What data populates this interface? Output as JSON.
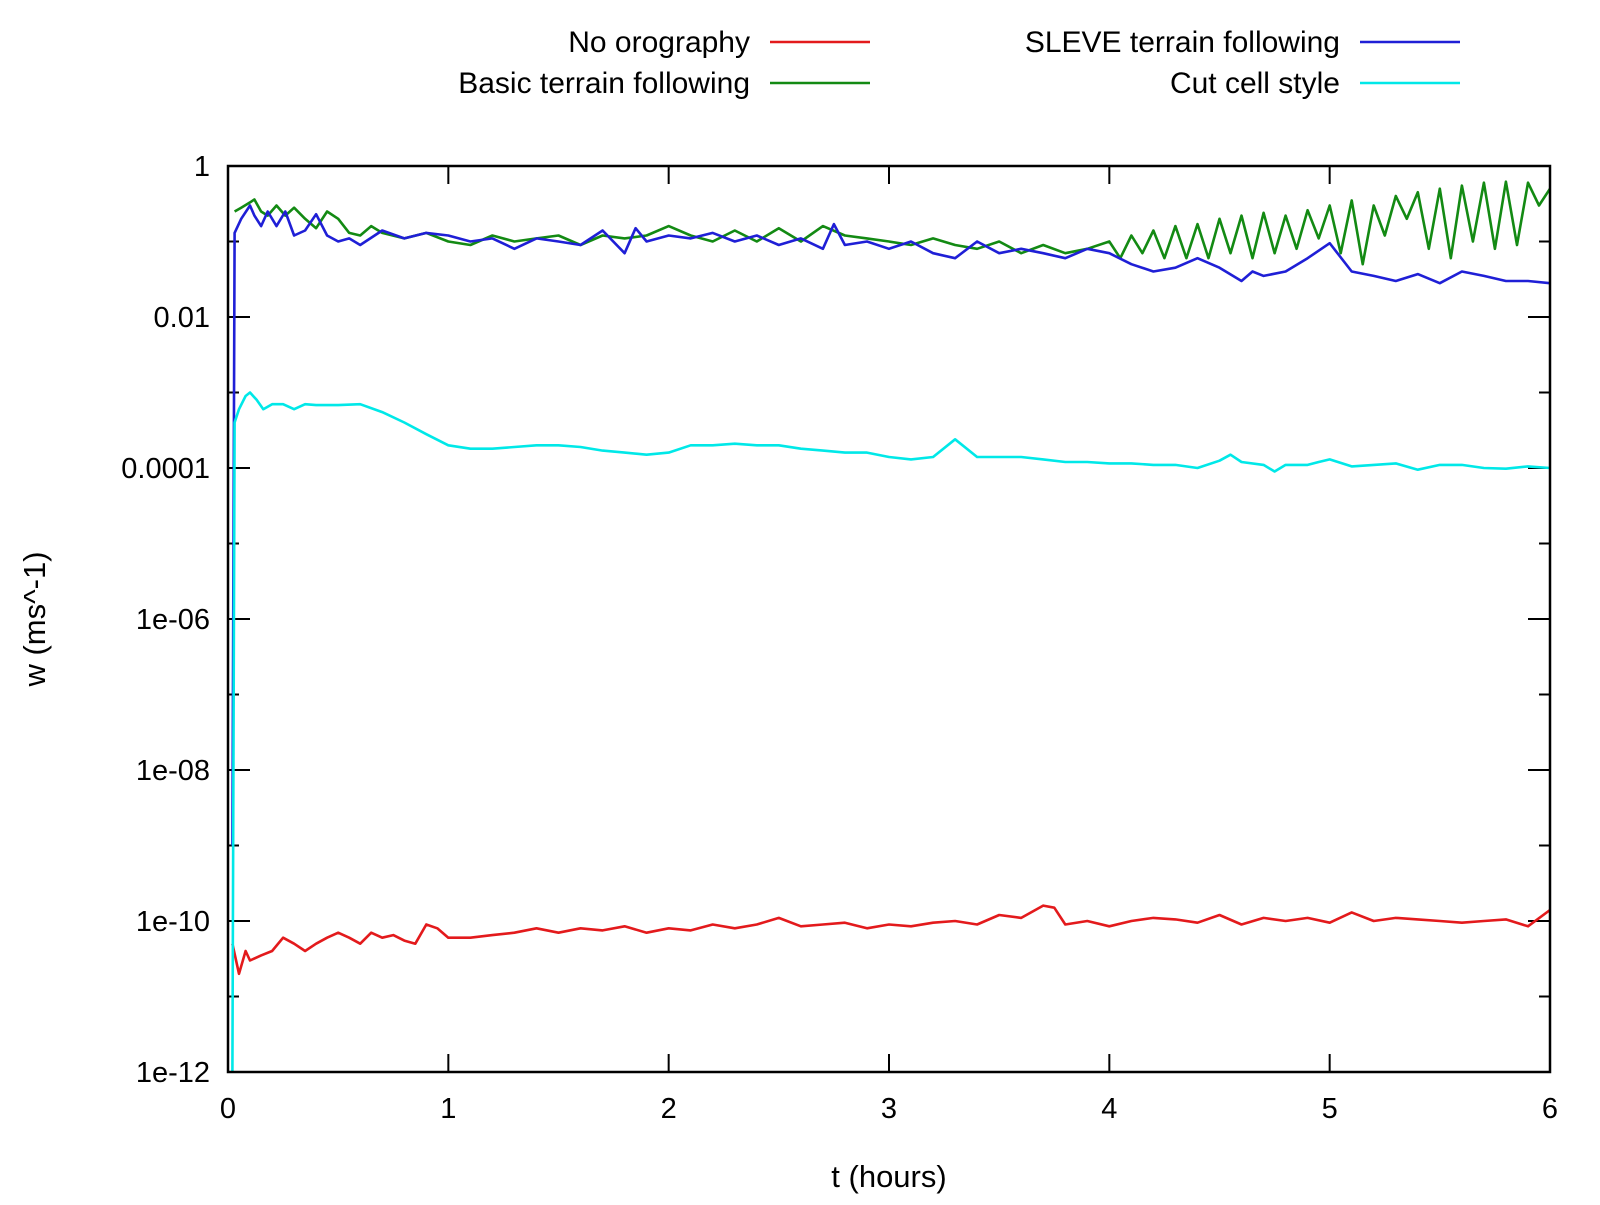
{
  "chart_data": {
    "type": "line",
    "title": "",
    "xlabel": "t (hours)",
    "ylabel": "w (ms^-1)",
    "xlim": [
      0,
      6
    ],
    "ylim": [
      1e-12,
      1
    ],
    "yscale": "log",
    "x_ticks": [
      0,
      1,
      2,
      3,
      4,
      5,
      6
    ],
    "x_tick_labels": [
      "0",
      "1",
      "2",
      "3",
      "4",
      "5",
      "6"
    ],
    "y_ticks": [
      1e-12,
      1e-10,
      1e-08,
      1e-06,
      0.0001,
      0.01,
      1
    ],
    "y_tick_labels": [
      "1e-12",
      "1e-10",
      "1e-08",
      "1e-06",
      "0.0001",
      "0.01",
      "1"
    ],
    "grid": false,
    "legend_position": "top",
    "series": [
      {
        "name": "No orography",
        "color": "#e31a1c",
        "x": [
          0.02,
          0.05,
          0.08,
          0.1,
          0.15,
          0.2,
          0.25,
          0.3,
          0.35,
          0.4,
          0.45,
          0.5,
          0.55,
          0.6,
          0.65,
          0.7,
          0.75,
          0.8,
          0.85,
          0.9,
          0.95,
          1.0,
          1.1,
          1.2,
          1.3,
          1.4,
          1.5,
          1.6,
          1.7,
          1.8,
          1.9,
          2.0,
          2.1,
          2.2,
          2.3,
          2.4,
          2.5,
          2.6,
          2.7,
          2.8,
          2.9,
          3.0,
          3.1,
          3.2,
          3.3,
          3.4,
          3.5,
          3.6,
          3.7,
          3.75,
          3.8,
          3.9,
          4.0,
          4.1,
          4.2,
          4.3,
          4.4,
          4.5,
          4.6,
          4.7,
          4.8,
          4.9,
          5.0,
          5.1,
          5.2,
          5.3,
          5.4,
          5.5,
          5.6,
          5.7,
          5.8,
          5.9,
          6.0
        ],
        "y": [
          5e-11,
          2e-11,
          4e-11,
          3e-11,
          3.5e-11,
          4e-11,
          6e-11,
          5e-11,
          4e-11,
          5e-11,
          6e-11,
          7e-11,
          6e-11,
          5e-11,
          7e-11,
          6e-11,
          6.5e-11,
          5.5e-11,
          5e-11,
          9e-11,
          8e-11,
          6e-11,
          6e-11,
          6.5e-11,
          7e-11,
          8e-11,
          7e-11,
          8e-11,
          7.5e-11,
          8.5e-11,
          7e-11,
          8e-11,
          7.5e-11,
          9e-11,
          8e-11,
          9e-11,
          1.1e-10,
          8.5e-11,
          9e-11,
          9.5e-11,
          8e-11,
          9e-11,
          8.5e-11,
          9.5e-11,
          1e-10,
          9e-11,
          1.2e-10,
          1.1e-10,
          1.6e-10,
          1.5e-10,
          9e-11,
          1e-10,
          8.5e-11,
          1e-10,
          1.1e-10,
          1.05e-10,
          9.5e-11,
          1.2e-10,
          9e-11,
          1.1e-10,
          1e-10,
          1.1e-10,
          9.5e-11,
          1.3e-10,
          1e-10,
          1.1e-10,
          1.05e-10,
          1e-10,
          9.5e-11,
          1e-10,
          1.05e-10,
          8.5e-11,
          1.4e-10
        ]
      },
      {
        "name": "Basic terrain following",
        "color": "#138a13",
        "x": [
          0.03,
          0.06,
          0.1,
          0.12,
          0.15,
          0.18,
          0.22,
          0.26,
          0.3,
          0.35,
          0.4,
          0.45,
          0.5,
          0.55,
          0.6,
          0.65,
          0.7,
          0.8,
          0.9,
          1.0,
          1.1,
          1.2,
          1.3,
          1.4,
          1.5,
          1.6,
          1.7,
          1.8,
          1.9,
          2.0,
          2.1,
          2.2,
          2.3,
          2.4,
          2.5,
          2.6,
          2.7,
          2.8,
          2.9,
          3.0,
          3.1,
          3.2,
          3.3,
          3.4,
          3.5,
          3.6,
          3.7,
          3.8,
          3.9,
          4.0,
          4.05,
          4.1,
          4.15,
          4.2,
          4.25,
          4.3,
          4.35,
          4.4,
          4.45,
          4.5,
          4.55,
          4.6,
          4.65,
          4.7,
          4.75,
          4.8,
          4.85,
          4.9,
          4.95,
          5.0,
          5.05,
          5.1,
          5.15,
          5.2,
          5.25,
          5.3,
          5.35,
          5.4,
          5.45,
          5.5,
          5.55,
          5.6,
          5.65,
          5.7,
          5.75,
          5.8,
          5.85,
          5.9,
          5.95,
          6.0
        ],
        "y": [
          0.25,
          0.28,
          0.33,
          0.36,
          0.25,
          0.22,
          0.3,
          0.22,
          0.28,
          0.2,
          0.15,
          0.25,
          0.2,
          0.13,
          0.12,
          0.16,
          0.13,
          0.11,
          0.13,
          0.1,
          0.09,
          0.12,
          0.1,
          0.11,
          0.12,
          0.09,
          0.12,
          0.11,
          0.12,
          0.16,
          0.12,
          0.1,
          0.14,
          0.1,
          0.15,
          0.1,
          0.16,
          0.12,
          0.11,
          0.1,
          0.09,
          0.11,
          0.09,
          0.08,
          0.1,
          0.07,
          0.09,
          0.07,
          0.08,
          0.1,
          0.06,
          0.12,
          0.07,
          0.14,
          0.06,
          0.16,
          0.06,
          0.17,
          0.06,
          0.2,
          0.07,
          0.22,
          0.06,
          0.24,
          0.07,
          0.22,
          0.08,
          0.26,
          0.11,
          0.3,
          0.07,
          0.35,
          0.05,
          0.3,
          0.12,
          0.4,
          0.2,
          0.45,
          0.08,
          0.5,
          0.06,
          0.55,
          0.1,
          0.6,
          0.08,
          0.62,
          0.09,
          0.6,
          0.3,
          0.5
        ]
      },
      {
        "name": "SLEVE terrain following",
        "color": "#1f1fd6",
        "x": [
          0.02,
          0.03,
          0.06,
          0.1,
          0.12,
          0.15,
          0.18,
          0.22,
          0.26,
          0.3,
          0.35,
          0.4,
          0.45,
          0.5,
          0.55,
          0.6,
          0.7,
          0.8,
          0.9,
          1.0,
          1.1,
          1.2,
          1.3,
          1.4,
          1.5,
          1.6,
          1.7,
          1.8,
          1.85,
          1.9,
          2.0,
          2.1,
          2.2,
          2.3,
          2.4,
          2.5,
          2.6,
          2.7,
          2.75,
          2.8,
          2.9,
          3.0,
          3.1,
          3.2,
          3.3,
          3.4,
          3.5,
          3.6,
          3.7,
          3.8,
          3.9,
          4.0,
          4.1,
          4.2,
          4.3,
          4.4,
          4.5,
          4.6,
          4.65,
          4.7,
          4.8,
          4.9,
          5.0,
          5.1,
          5.2,
          5.3,
          5.4,
          5.5,
          5.6,
          5.7,
          5.8,
          5.9,
          6.0
        ],
        "y": [
          1e-09,
          0.13,
          0.2,
          0.3,
          0.22,
          0.16,
          0.25,
          0.16,
          0.25,
          0.12,
          0.14,
          0.23,
          0.12,
          0.1,
          0.11,
          0.09,
          0.14,
          0.11,
          0.13,
          0.12,
          0.1,
          0.11,
          0.08,
          0.11,
          0.1,
          0.09,
          0.14,
          0.07,
          0.15,
          0.1,
          0.12,
          0.11,
          0.13,
          0.1,
          0.12,
          0.09,
          0.11,
          0.08,
          0.17,
          0.09,
          0.1,
          0.08,
          0.1,
          0.07,
          0.06,
          0.1,
          0.07,
          0.08,
          0.07,
          0.06,
          0.08,
          0.07,
          0.05,
          0.04,
          0.045,
          0.06,
          0.045,
          0.03,
          0.04,
          0.035,
          0.04,
          0.06,
          0.095,
          0.04,
          0.035,
          0.03,
          0.037,
          0.028,
          0.04,
          0.035,
          0.03,
          0.03,
          0.028
        ]
      },
      {
        "name": "Cut cell style",
        "color": "#00e8e8",
        "x": [
          0.02,
          0.03,
          0.05,
          0.08,
          0.1,
          0.13,
          0.16,
          0.2,
          0.25,
          0.3,
          0.35,
          0.4,
          0.5,
          0.6,
          0.7,
          0.8,
          0.9,
          1.0,
          1.1,
          1.2,
          1.3,
          1.4,
          1.5,
          1.6,
          1.7,
          1.8,
          1.9,
          2.0,
          2.1,
          2.2,
          2.3,
          2.4,
          2.5,
          2.6,
          2.7,
          2.8,
          2.9,
          3.0,
          3.1,
          3.2,
          3.3,
          3.4,
          3.5,
          3.6,
          3.7,
          3.8,
          3.9,
          4.0,
          4.1,
          4.2,
          4.3,
          4.4,
          4.5,
          4.55,
          4.6,
          4.7,
          4.75,
          4.8,
          4.9,
          4.95,
          5.0,
          5.1,
          5.2,
          5.3,
          5.4,
          5.5,
          5.6,
          5.7,
          5.8,
          5.9,
          6.0
        ],
        "y": [
          1e-12,
          0.0004,
          0.0006,
          0.0009,
          0.001,
          0.0008,
          0.0006,
          0.0007,
          0.0007,
          0.0006,
          0.0007,
          0.00068,
          0.00068,
          0.0007,
          0.00055,
          0.0004,
          0.00028,
          0.0002,
          0.00018,
          0.00018,
          0.00019,
          0.0002,
          0.0002,
          0.00019,
          0.00017,
          0.00016,
          0.00015,
          0.00016,
          0.0002,
          0.0002,
          0.00021,
          0.0002,
          0.0002,
          0.00018,
          0.00017,
          0.00016,
          0.00016,
          0.00014,
          0.00013,
          0.00014,
          0.00024,
          0.00014,
          0.00014,
          0.00014,
          0.00013,
          0.00012,
          0.00012,
          0.000115,
          0.000115,
          0.00011,
          0.00011,
          0.0001,
          0.000125,
          0.00015,
          0.00012,
          0.00011,
          9e-05,
          0.00011,
          0.00011,
          0.00012,
          0.00013,
          0.000105,
          0.00011,
          0.000115,
          9.5e-05,
          0.00011,
          0.00011,
          0.0001,
          9.8e-05,
          0.000105,
          0.0001
        ]
      }
    ]
  }
}
